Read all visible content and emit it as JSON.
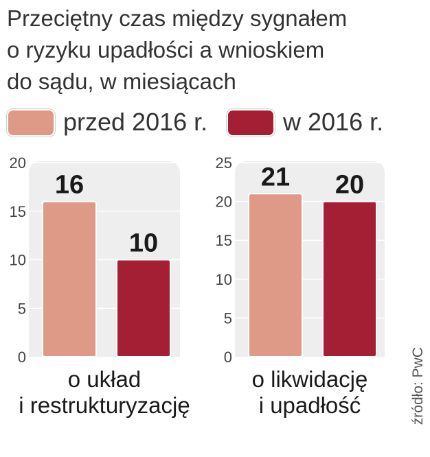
{
  "title_lines": [
    "Przeciętny czas między sygnałem",
    "o ryzyku upadłości a wnioskiem",
    "do sądu, w miesiącach"
  ],
  "source": "źródło: PwC",
  "colors": {
    "before": "#de9a86",
    "in2016": "#a41e34",
    "panel": "#eeeeee"
  },
  "chart_data": [
    {
      "type": "bar",
      "title": "",
      "categories": [
        "o układ\ni restrukturyzację"
      ],
      "series": [
        {
          "name": "przed 2016 r.",
          "values": [
            16
          ]
        },
        {
          "name": "w 2016 r.",
          "values": [
            10
          ]
        }
      ],
      "ylim": [
        0,
        20
      ],
      "yticks": [
        0,
        5,
        10,
        15,
        20
      ],
      "xlabel": "",
      "ylabel": "",
      "legend": "top",
      "grid": true,
      "category_label_lines": [
        "o układ",
        "i restrukturyzację"
      ]
    },
    {
      "type": "bar",
      "title": "",
      "categories": [
        "o likwidację\ni upadłość"
      ],
      "series": [
        {
          "name": "przed 2016 r.",
          "values": [
            21
          ]
        },
        {
          "name": "w 2016 r.",
          "values": [
            20
          ]
        }
      ],
      "ylim": [
        0,
        25
      ],
      "yticks": [
        0,
        5,
        10,
        15,
        20,
        25
      ],
      "xlabel": "",
      "ylabel": "",
      "legend": "top",
      "grid": true,
      "category_label_lines": [
        "o likwidację",
        "i upadłość"
      ]
    }
  ]
}
